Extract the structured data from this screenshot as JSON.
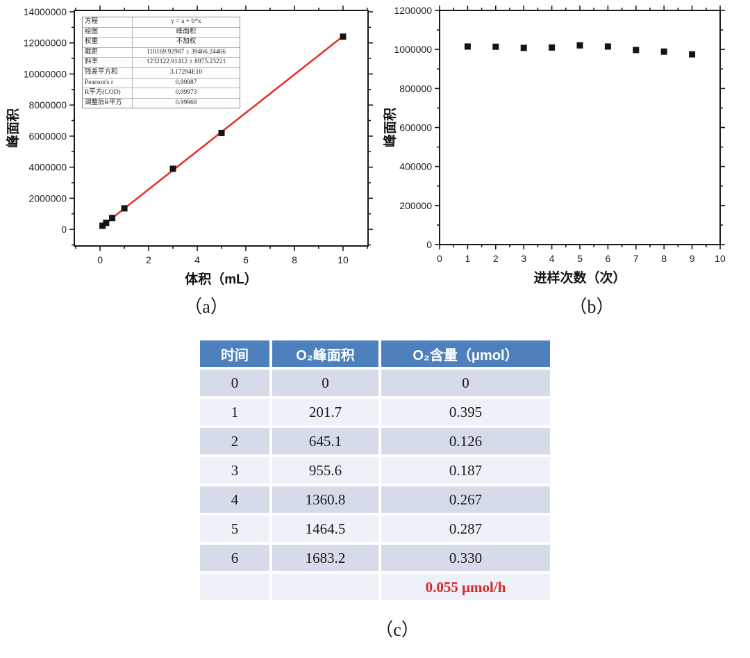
{
  "figure": {
    "caption_a": "（a）",
    "caption_b": "（b）",
    "caption_c": "（c）"
  },
  "chart_data": [
    {
      "id": "chart-a",
      "type": "scatter",
      "title": "",
      "xlabel": "体积（mL）",
      "ylabel": "峰面积",
      "xlim": [
        -1.06,
        11.03
      ],
      "ylim": [
        -1070000,
        14090000
      ],
      "xticks": [
        0,
        2,
        4,
        6,
        8,
        10
      ],
      "yticks": [
        0,
        2000000,
        4000000,
        6000000,
        8000000,
        10000000,
        12000000,
        14000000
      ],
      "grid": false,
      "x": [
        0.1,
        0.25,
        0.5,
        1,
        3,
        5,
        10
      ],
      "y": [
        230000,
        420000,
        730000,
        1350000,
        3900000,
        6200000,
        12400000
      ],
      "marker": {
        "shape": "square",
        "color": "#141414",
        "size": 9
      },
      "fit_line": {
        "color": "#e63329",
        "intercept": 110169.92987,
        "slope": 1232122.91412,
        "x_start": 0.1,
        "x_end": 10
      },
      "stats_box": {
        "rows": [
          [
            "方程",
            "y = a + b*x"
          ],
          [
            "绘图",
            "峰面积"
          ],
          [
            "权重",
            "不加权"
          ],
          [
            "截距",
            "110169.92987 ± 39466.24466"
          ],
          [
            "斜率",
            "1232122.91412 ± 8975.23221"
          ],
          [
            "残差平方和",
            "3.17294E10"
          ],
          [
            "Pearson's r",
            "0.99987"
          ],
          [
            "R平方(COD)",
            "0.99973"
          ],
          [
            "调整后R平方",
            "0.99968"
          ]
        ]
      }
    },
    {
      "id": "chart-b",
      "type": "scatter",
      "title": "",
      "xlabel": "进样次数（次）",
      "ylabel": "峰面积",
      "xlim": [
        0,
        10
      ],
      "ylim": [
        0,
        1200000
      ],
      "xticks": [
        0,
        1,
        2,
        3,
        4,
        5,
        6,
        7,
        8,
        9,
        10
      ],
      "yticks": [
        0,
        200000,
        400000,
        600000,
        800000,
        1000000,
        1200000
      ],
      "grid": false,
      "x": [
        1,
        2,
        3,
        4,
        5,
        6,
        7,
        8,
        9
      ],
      "y": [
        1015000,
        1014000,
        1008000,
        1010000,
        1021000,
        1015000,
        997000,
        989000,
        975000
      ],
      "marker": {
        "shape": "square",
        "color": "#141414",
        "size": 9
      }
    }
  ],
  "table": {
    "headers": [
      "时间",
      "O₂峰面积",
      "O₂含量（μmol）"
    ],
    "rows": [
      [
        "0",
        "0",
        "0"
      ],
      [
        "1",
        "201.7",
        "0.395"
      ],
      [
        "2",
        "645.1",
        "0.126"
      ],
      [
        "3",
        "955.6",
        "0.187"
      ],
      [
        "4",
        "1360.8",
        "0.267"
      ],
      [
        "5",
        "1464.5",
        "0.287"
      ],
      [
        "6",
        "1683.2",
        "0.330"
      ],
      [
        "",
        "",
        "0.055 μmol/h"
      ]
    ],
    "header_bg": "#4e80bd",
    "row_color_dark": "#d5dbe9",
    "row_color_light": "#eef1f7",
    "rate_text_color": "#d42a2a"
  }
}
